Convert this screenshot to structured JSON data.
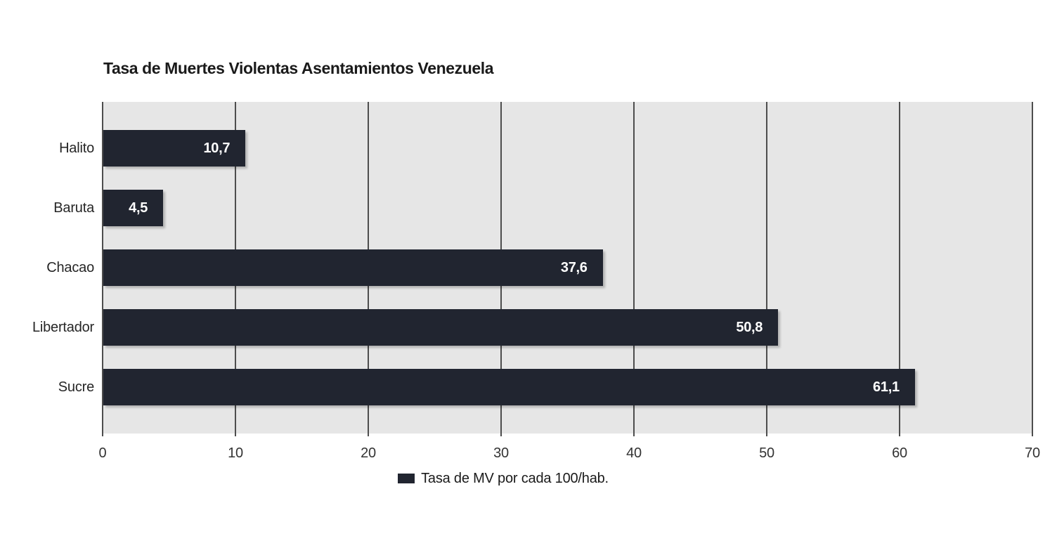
{
  "chart_data": {
    "type": "bar",
    "orientation": "horizontal",
    "title": "Tasa de Muertes Violentas Asentamientos Venezuela",
    "categories": [
      "Halito",
      "Baruta",
      "Chacao",
      "Libertador",
      "Sucre"
    ],
    "values": [
      10.7,
      4.5,
      37.6,
      50.8,
      61.1
    ],
    "value_labels": [
      "10,7",
      "4,5",
      "37,6",
      "50,8",
      "61,1"
    ],
    "series_name": "Tasa de MV por cada 100/hab.",
    "legend": "Tasa de MV por cada 100/hab.",
    "legend_position": "bottom",
    "xlabel": "",
    "ylabel": "",
    "xlim": [
      0,
      70
    ],
    "x_tick_values": [
      0,
      10,
      20,
      30,
      40,
      50,
      60,
      70
    ],
    "x_tick_labels": [
      "0",
      "10",
      "20",
      "30",
      "40",
      "50",
      "60",
      "70"
    ],
    "grid": true,
    "colors": {
      "bar": "#212530",
      "plot_background": "#e6e6e6",
      "gridline": "#4d4d4d",
      "value_label_text": "#ffffff",
      "axis_text": "#333333",
      "title_text": "#1a1a1a"
    }
  }
}
